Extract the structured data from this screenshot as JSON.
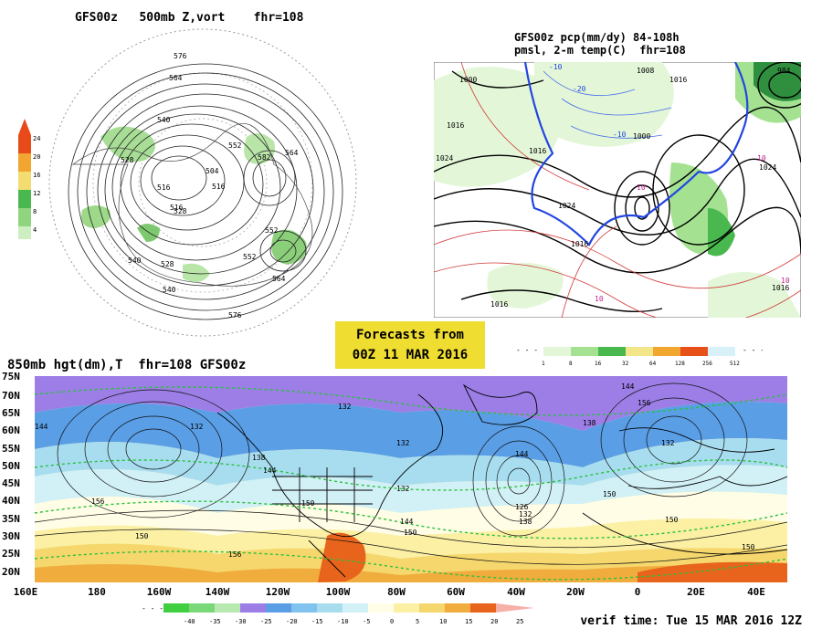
{
  "panels": {
    "top_left": {
      "title": "GFS00z   500mb Z,vort    fhr=108",
      "contour_labels": [
        "576",
        "564",
        "540",
        "528",
        "516",
        "528",
        "540",
        "552",
        "564",
        "576",
        "516",
        "552",
        "582",
        "552",
        "540",
        "516",
        "504",
        "528",
        "564"
      ],
      "colorbar_ticks": [
        "24",
        "20",
        "16",
        "12",
        "8",
        "4"
      ],
      "colorbar_colors": [
        "#e84a1a",
        "#f2a531",
        "#f3dc70",
        "#49b84f",
        "#8fd47e",
        "#cdeec0"
      ]
    },
    "top_right": {
      "title_line1": "GFS00z pcp(mm/dy) 84-108h",
      "title_line2": "pmsl, 2-m temp(C)  fhr=108",
      "contour_labels": [
        "1000",
        "1016",
        "1024",
        "1016",
        "1008",
        "1016",
        "1000",
        "984",
        "1024",
        "1024",
        "1016",
        "1016",
        "1016"
      ],
      "temp_labels": [
        "-10",
        "-20",
        "-10",
        "10",
        "10",
        "10",
        "10"
      ],
      "colorbar_ticks": [
        "1",
        "8",
        "16",
        "32",
        "64",
        "128",
        "256",
        "512"
      ],
      "colorbar_colors": [
        "#e3f7d8",
        "#a4e291",
        "#49b84f",
        "#f3e58a",
        "#f1a72f",
        "#e8501a",
        "#d8f1f8"
      ]
    },
    "bottom": {
      "title": "850mb hgt(dm),T  fhr=108 GFS00z",
      "lat_labels": [
        "75N",
        "70N",
        "65N",
        "60N",
        "55N",
        "50N",
        "45N",
        "40N",
        "35N",
        "30N",
        "25N",
        "20N"
      ],
      "lon_labels": [
        "160E",
        "180",
        "160W",
        "140W",
        "120W",
        "100W",
        "80W",
        "60W",
        "40W",
        "20W",
        "0",
        "20E",
        "40E"
      ],
      "height_labels": [
        "144",
        "132",
        "132",
        "138",
        "144",
        "150",
        "156",
        "150",
        "156",
        "150",
        "144",
        "132",
        "132",
        "144",
        "126",
        "132",
        "138",
        "138",
        "144",
        "156",
        "150",
        "132",
        "150",
        "150"
      ],
      "colorbar_ticks": [
        "-40",
        "-35",
        "-30",
        "-25",
        "-20",
        "-15",
        "-10",
        "-5",
        "0",
        "5",
        "10",
        "15",
        "20",
        "25"
      ],
      "colorbar_colors": [
        "#3fcf3f",
        "#7ad87a",
        "#b7e9b0",
        "#9c7ee6",
        "#5a9ee6",
        "#7fc3ee",
        "#a8ddf0",
        "#d2f1f7",
        "#fffde6",
        "#fbf0a4",
        "#f5d76e",
        "#f0ad3d",
        "#e8641c",
        "#f7b0a8"
      ]
    }
  },
  "forecast_box": {
    "line1": "Forecasts from",
    "line2": "00Z 11 MAR 2016",
    "color": "#f0dd32"
  },
  "verif_time": "verif time: Tue 15 MAR 2016 12Z"
}
